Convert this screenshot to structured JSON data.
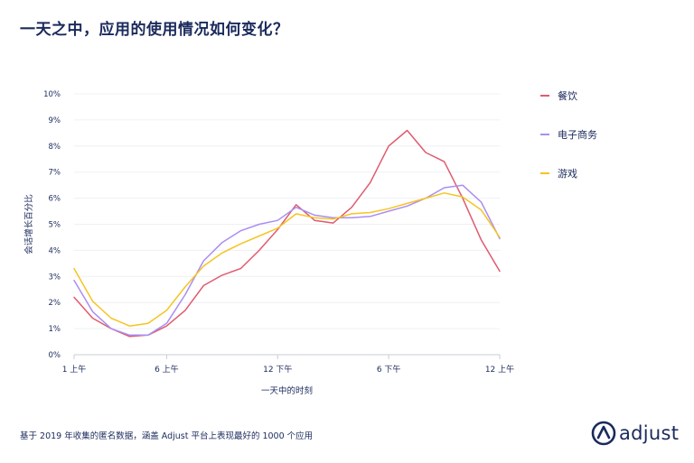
{
  "title": "一天之中，应用的使用情况如何变化？",
  "footnote": "基于 2019 年收集的匿名数据，涵盖 Adjust 平台上表现最好的 1000 个应用",
  "logo": {
    "text": "adjust",
    "icon": "adjust-logo-icon",
    "color": "#1b2a5c"
  },
  "colors": {
    "text": "#1b2a5c",
    "grid": "#eef0f4",
    "axis": "#c8ccd6"
  },
  "chart_data": {
    "type": "line",
    "xlabel": "一天中的时刻",
    "ylabel": "会话增长百分比",
    "ylim": [
      0,
      10
    ],
    "y_ticks": [
      "0%",
      "1%",
      "2%",
      "3%",
      "4%",
      "5%",
      "6%",
      "7%",
      "8%",
      "9%",
      "10%"
    ],
    "x": [
      1,
      2,
      3,
      4,
      5,
      6,
      7,
      8,
      9,
      10,
      11,
      12,
      13,
      14,
      15,
      16,
      17,
      18,
      19,
      20,
      21,
      22,
      23,
      24
    ],
    "x_ticks": [
      {
        "x": 1,
        "label": "1 上午"
      },
      {
        "x": 6,
        "label": "6 上午"
      },
      {
        "x": 12,
        "label": "12 下午"
      },
      {
        "x": 18,
        "label": "6 下午"
      },
      {
        "x": 24,
        "label": "12 上午"
      }
    ],
    "legend": "right",
    "grid": {
      "horizontal": true,
      "vertical": false
    },
    "series": [
      {
        "name": "餐饮",
        "color": "#e05a6e",
        "values": [
          2.2,
          1.4,
          1.0,
          0.7,
          0.75,
          1.1,
          1.7,
          2.65,
          3.05,
          3.3,
          4.0,
          4.8,
          5.75,
          5.15,
          5.05,
          5.65,
          6.6,
          8.0,
          8.6,
          7.75,
          7.4,
          6.0,
          4.4,
          3.2
        ]
      },
      {
        "name": "电子商务",
        "color": "#a98ef2",
        "values": [
          2.85,
          1.65,
          1.0,
          0.75,
          0.75,
          1.2,
          2.3,
          3.6,
          4.3,
          4.75,
          5.0,
          5.15,
          5.65,
          5.35,
          5.25,
          5.25,
          5.3,
          5.5,
          5.7,
          6.0,
          6.4,
          6.5,
          5.85,
          4.45
        ]
      },
      {
        "name": "游戏",
        "color": "#f6c423",
        "values": [
          3.3,
          2.05,
          1.4,
          1.1,
          1.2,
          1.7,
          2.6,
          3.4,
          3.9,
          4.25,
          4.55,
          4.85,
          5.4,
          5.25,
          5.2,
          5.4,
          5.45,
          5.6,
          5.8,
          6.0,
          6.2,
          6.05,
          5.55,
          4.5
        ]
      }
    ]
  }
}
